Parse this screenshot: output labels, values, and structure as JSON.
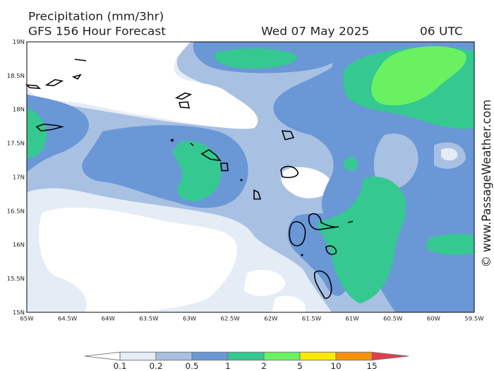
{
  "header": {
    "title": "Precipitation (mm/3hr)",
    "model": "GFS 156 Hour Forecast",
    "date": "Wed 07 May 2025",
    "time": "06 UTC"
  },
  "credit": "© www.PassageWeather.com",
  "map": {
    "lat_labels": [
      "19N",
      "18.5N",
      "18N",
      "17.5N",
      "17N",
      "16.5N",
      "16N",
      "15.5N",
      "15N"
    ],
    "lon_labels": [
      "65W",
      "64.5W",
      "64W",
      "63.5W",
      "63W",
      "62.5W",
      "62W",
      "61.5W",
      "61W",
      "60.5W",
      "60W",
      "59.5W"
    ]
  },
  "legend": {
    "levels": [
      0.1,
      0.2,
      0.5,
      1,
      2,
      5,
      10,
      15
    ],
    "colors": [
      "#ffffff",
      "#e4ecf6",
      "#a8c0e2",
      "#6a97d6",
      "#35c891",
      "#6af162",
      "#fce805",
      "#f9900a",
      "#e43c4c"
    ]
  }
}
